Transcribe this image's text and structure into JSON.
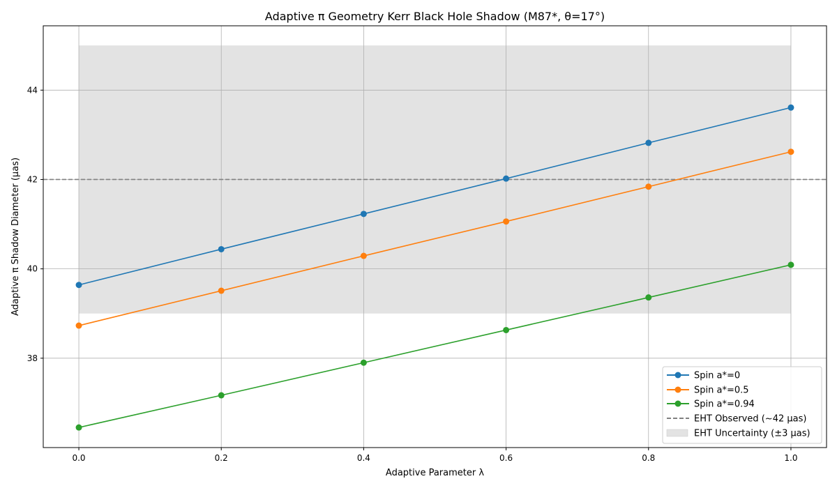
{
  "chart_data": {
    "type": "line",
    "title": "Adaptive π Geometry Kerr Black Hole Shadow (M87*, θ=17°)",
    "xlabel": "Adaptive Parameter λ",
    "ylabel": "Adaptive π Shadow Diameter (μas)",
    "xlim": [
      -0.05,
      1.05
    ],
    "ylim": [
      36.0,
      45.44
    ],
    "xticks": [
      0.0,
      0.2,
      0.4,
      0.6,
      0.8,
      1.0
    ],
    "xtick_labels": [
      "0.0",
      "0.2",
      "0.4",
      "0.6",
      "0.8",
      "1.0"
    ],
    "yticks": [
      38,
      40,
      42,
      44
    ],
    "ytick_labels": [
      "38",
      "40",
      "42",
      "44"
    ],
    "grid": true,
    "legend_position": "lower-right",
    "x": [
      0.0,
      0.2,
      0.4,
      0.6,
      0.8,
      1.0
    ],
    "series": [
      {
        "name": "Spin a*=0",
        "color": "#1f77b4",
        "values": [
          39.64,
          40.44,
          41.23,
          42.02,
          42.82,
          43.61
        ]
      },
      {
        "name": "Spin a*=0.5",
        "color": "#ff7f0e",
        "values": [
          38.73,
          39.51,
          40.29,
          41.06,
          41.84,
          42.62
        ]
      },
      {
        "name": "Spin a*=0.94",
        "color": "#2ca02c",
        "values": [
          36.45,
          37.17,
          37.9,
          38.63,
          39.36,
          40.09
        ]
      }
    ],
    "reference_line": {
      "name": "EHT Observed (~42 μas)",
      "value": 42,
      "color": "#808080",
      "style": "dashed"
    },
    "uncertainty_band": {
      "name": "EHT Uncertainty (±3 μas)",
      "x_range": [
        0.0,
        1.0
      ],
      "y_range": [
        39,
        45
      ],
      "color": "#e3e3e3"
    }
  }
}
